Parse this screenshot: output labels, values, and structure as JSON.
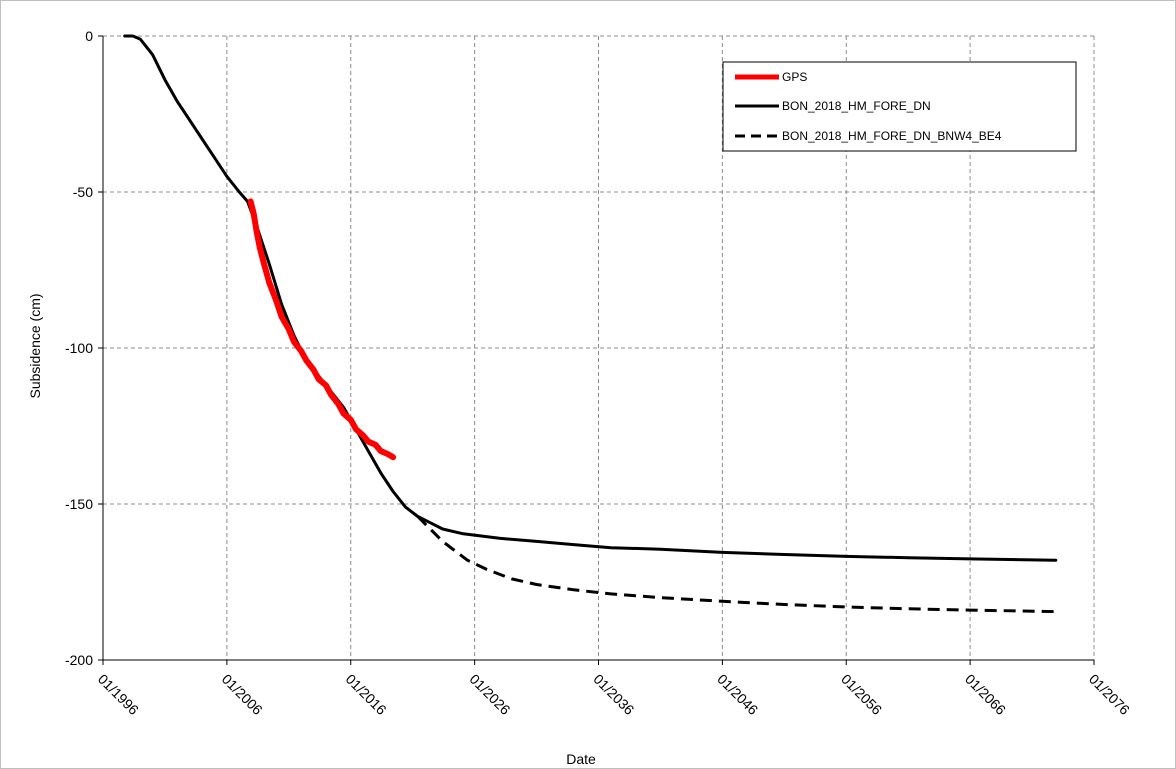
{
  "chart_data": {
    "type": "line",
    "title": "",
    "xlabel": "Date",
    "ylabel": "Subsidence (cm)",
    "x_axis": {
      "type": "date",
      "ticks": [
        "01/1996",
        "01/2006",
        "01/2016",
        "01/2026",
        "01/2036",
        "01/2046",
        "01/2056",
        "01/2066",
        "01/2076"
      ],
      "range": [
        "1996-01",
        "2076-01"
      ]
    },
    "y_axis": {
      "ticks": [
        "0",
        "-50",
        "-100",
        "-150",
        "-200"
      ],
      "ylim": [
        -200,
        0
      ]
    },
    "grid": true,
    "legend": "top-right",
    "series": [
      {
        "name": "GPS",
        "color": "#ff0000",
        "style": "solid-thick",
        "points": [
          [
            "2007-12",
            -53
          ],
          [
            "2008-03",
            -57
          ],
          [
            "2008-06",
            -63
          ],
          [
            "2008-09",
            -68
          ],
          [
            "2009-01",
            -73
          ],
          [
            "2009-06",
            -79
          ],
          [
            "2010-01",
            -85
          ],
          [
            "2010-06",
            -90
          ],
          [
            "2011-01",
            -94
          ],
          [
            "2011-06",
            -98
          ],
          [
            "2012-01",
            -101
          ],
          [
            "2012-06",
            -104
          ],
          [
            "2013-01",
            -107
          ],
          [
            "2013-06",
            -110
          ],
          [
            "2014-01",
            -112
          ],
          [
            "2014-06",
            -115
          ],
          [
            "2015-01",
            -118
          ],
          [
            "2015-06",
            -121
          ],
          [
            "2016-01",
            -123
          ],
          [
            "2016-06",
            -126
          ],
          [
            "2017-01",
            -128
          ],
          [
            "2017-06",
            -130
          ],
          [
            "2018-01",
            -131
          ],
          [
            "2018-06",
            -133
          ],
          [
            "2019-01",
            -134
          ],
          [
            "2019-06",
            -135
          ]
        ]
      },
      {
        "name": "BON_2018_HM_FORE_DN",
        "color": "#000000",
        "style": "solid",
        "points": [
          [
            "1997-10",
            0
          ],
          [
            "1998-06",
            0
          ],
          [
            "1999-01",
            -1
          ],
          [
            "1999-06",
            -3
          ],
          [
            "2000-01",
            -6
          ],
          [
            "2001-01",
            -14
          ],
          [
            "2002-01",
            -21
          ],
          [
            "2003-01",
            -27
          ],
          [
            "2004-01",
            -33
          ],
          [
            "2005-01",
            -39
          ],
          [
            "2006-01",
            -45
          ],
          [
            "2007-01",
            -50
          ],
          [
            "2007-09",
            -53
          ],
          [
            "2008-06",
            -61
          ],
          [
            "2009-06",
            -73
          ],
          [
            "2010-06",
            -86
          ],
          [
            "2011-06",
            -96
          ],
          [
            "2012-06",
            -104
          ],
          [
            "2013-06",
            -109
          ],
          [
            "2014-06",
            -114
          ],
          [
            "2015-06",
            -119
          ],
          [
            "2016-06",
            -126
          ],
          [
            "2017-06",
            -133
          ],
          [
            "2018-06",
            -140
          ],
          [
            "2019-06",
            -146
          ],
          [
            "2020-06",
            -151
          ],
          [
            "2021-06",
            -154
          ],
          [
            "2022-06",
            -156
          ],
          [
            "2023-06",
            -158
          ],
          [
            "2025-01",
            -159.5
          ],
          [
            "2028-01",
            -161
          ],
          [
            "2031-01",
            -162
          ],
          [
            "2034-01",
            -163
          ],
          [
            "2037-01",
            -164
          ],
          [
            "2041-01",
            -164.5
          ],
          [
            "2046-01",
            -165.5
          ],
          [
            "2051-01",
            -166.2
          ],
          [
            "2056-01",
            -166.8
          ],
          [
            "2061-01",
            -167.2
          ],
          [
            "2066-01",
            -167.6
          ],
          [
            "2072-12",
            -168
          ]
        ]
      },
      {
        "name": "BON_2018_HM_FORE_DN_BNW4_BE4",
        "color": "#000000",
        "style": "dashed",
        "points": [
          [
            "2021-06",
            -154
          ],
          [
            "2022-06",
            -158
          ],
          [
            "2023-06",
            -162
          ],
          [
            "2024-06",
            -165
          ],
          [
            "2025-06",
            -168
          ],
          [
            "2027-01",
            -171
          ],
          [
            "2029-01",
            -174
          ],
          [
            "2031-01",
            -175.8
          ],
          [
            "2034-01",
            -177.5
          ],
          [
            "2037-01",
            -178.8
          ],
          [
            "2041-01",
            -180
          ],
          [
            "2046-01",
            -181.2
          ],
          [
            "2051-01",
            -182.2
          ],
          [
            "2056-01",
            -183
          ],
          [
            "2061-01",
            -183.6
          ],
          [
            "2066-01",
            -184
          ],
          [
            "2072-12",
            -184.5
          ]
        ]
      }
    ]
  }
}
